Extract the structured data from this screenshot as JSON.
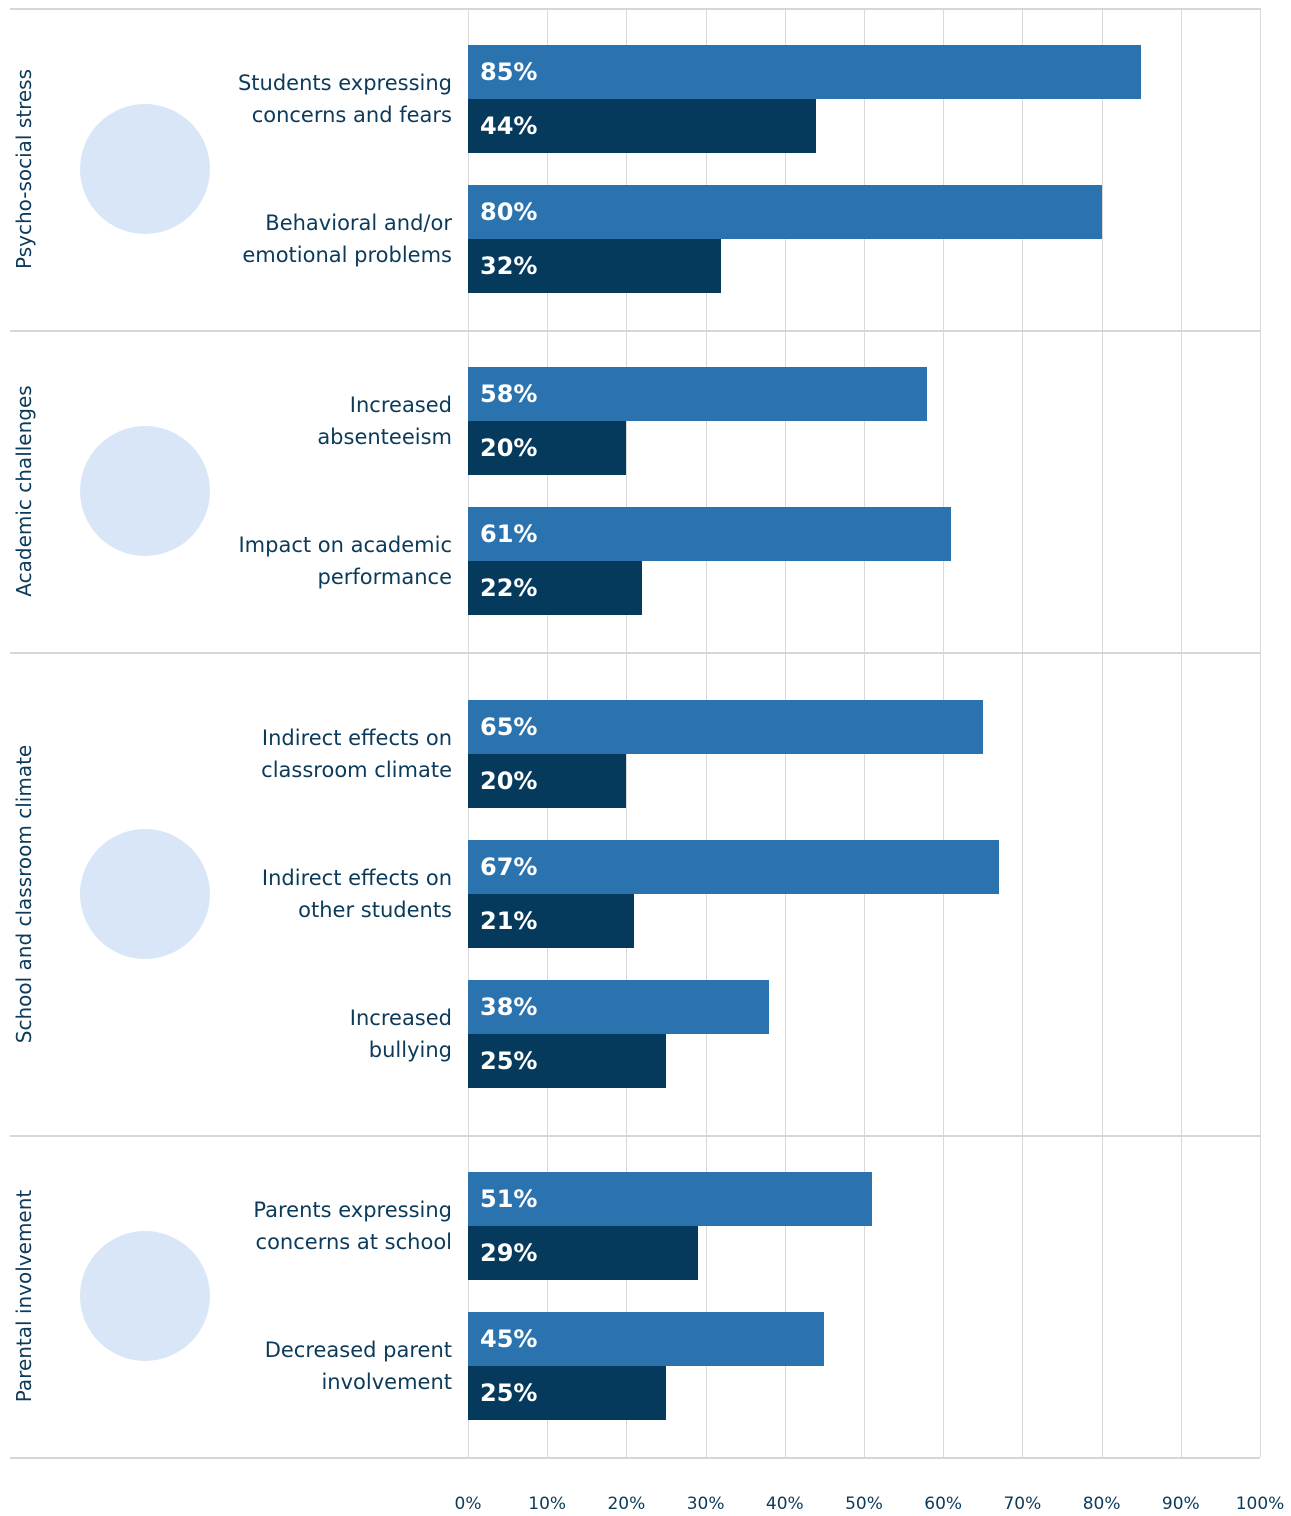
{
  "chart_data": {
    "type": "grouped-bar",
    "orientation": "horizontal",
    "groups": [
      {
        "label": "Psycho-social stress",
        "categories": [
          "Students expressing\nconcerns and fears",
          "Behavioral and/or\nemotional problems"
        ]
      },
      {
        "label": "Academic challenges",
        "categories": [
          "Increased\nabsenteeism",
          "Impact on academic\nperformance"
        ]
      },
      {
        "label": "School and classroom climate",
        "categories": [
          "Indirect effects on\nclassroom climate",
          "Indirect effects on\nother students",
          "Increased\nbullying"
        ]
      },
      {
        "label": "Parental involvement",
        "categories": [
          "Parents expressing\nconcerns at school",
          "Decreased parent\ninvolvement"
        ]
      }
    ],
    "series": [
      {
        "color": "#2a73ae",
        "values": [
          85,
          80,
          58,
          61,
          65,
          67,
          38,
          51,
          45
        ],
        "value_labels": [
          "85%",
          "80%",
          "58%",
          "61%",
          "65%",
          "67%",
          "38%",
          "51%",
          "45%"
        ]
      },
      {
        "color": "#053a5c",
        "values": [
          44,
          32,
          20,
          22,
          20,
          21,
          25,
          29,
          25
        ],
        "value_labels": [
          "44%",
          "32%",
          "20%",
          "22%",
          "20%",
          "21%",
          "25%",
          "29%",
          "25%"
        ]
      }
    ],
    "xlim": [
      0,
      100
    ],
    "xticks": [
      {
        "value": 0,
        "label": "0%"
      },
      {
        "value": 10,
        "label": "10%"
      },
      {
        "value": 20,
        "label": "20%"
      },
      {
        "value": 30,
        "label": "30%"
      },
      {
        "value": 40,
        "label": "40%"
      },
      {
        "value": 50,
        "label": "50%"
      },
      {
        "value": 60,
        "label": "60%"
      },
      {
        "value": 70,
        "label": "70%"
      },
      {
        "value": 80,
        "label": "80%"
      },
      {
        "value": 90,
        "label": "90%"
      },
      {
        "value": 100,
        "label": "100%"
      }
    ],
    "grid": true
  }
}
